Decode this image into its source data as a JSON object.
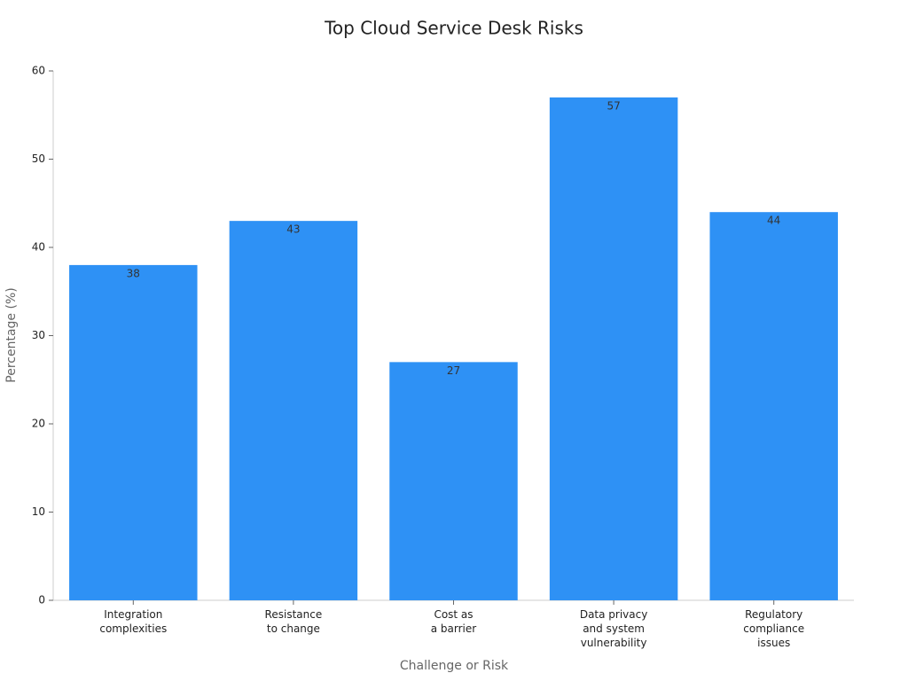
{
  "chart_data": {
    "type": "bar",
    "title": "Top Cloud Service Desk Risks",
    "x_label": "Challenge or Risk",
    "y_label": "Percentage (%)",
    "categories": [
      "Integration\ncomplexities",
      "Resistance\nto change",
      "Cost as\na barrier",
      "Data privacy\nand system\nvulnerability",
      "Regulatory\ncompliance\nissues"
    ],
    "values": [
      38,
      43,
      27,
      57,
      44
    ],
    "color": "#2e91f5",
    "ylim": [
      0,
      60
    ],
    "yticks": [
      0,
      10,
      20,
      30,
      40,
      50,
      60
    ],
    "grid": false
  }
}
